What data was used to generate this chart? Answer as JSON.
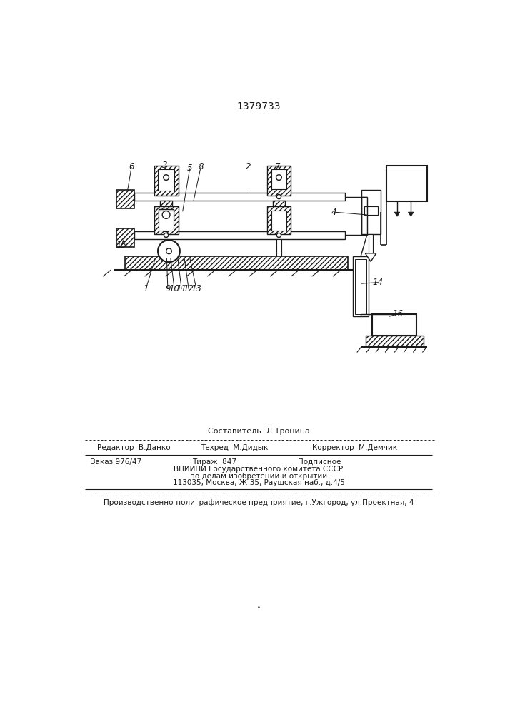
{
  "patent_number": "1379733",
  "bg_color": "#ffffff",
  "line_color": "#1a1a1a",
  "title_fontsize": 10,
  "label_fontsize": 8.5,
  "footer_fontsize": 8,
  "small_fontsize": 7.5,
  "sestavitel": "Составитель  Л.Тронина",
  "redaktor": "Редактор  В.Данко",
  "tehred": "Техред  М.Дидык",
  "korrektor": "Корректор  М.Демчик",
  "zakaz": "Заказ 976/47",
  "tirazh": "Тираж  847",
  "podpisnoe": "Подписное",
  "vniip1": "ВНИИПИ Государственного комитета СССР",
  "vniip2": "по делам изобретений и открытий",
  "vniip3": "113035, Москва, Ж-35, Раушская наб., д.4/5",
  "predpr": "Производственно-полиграфическое предприятие, г.Ужгород, ул.Проектная, 4"
}
